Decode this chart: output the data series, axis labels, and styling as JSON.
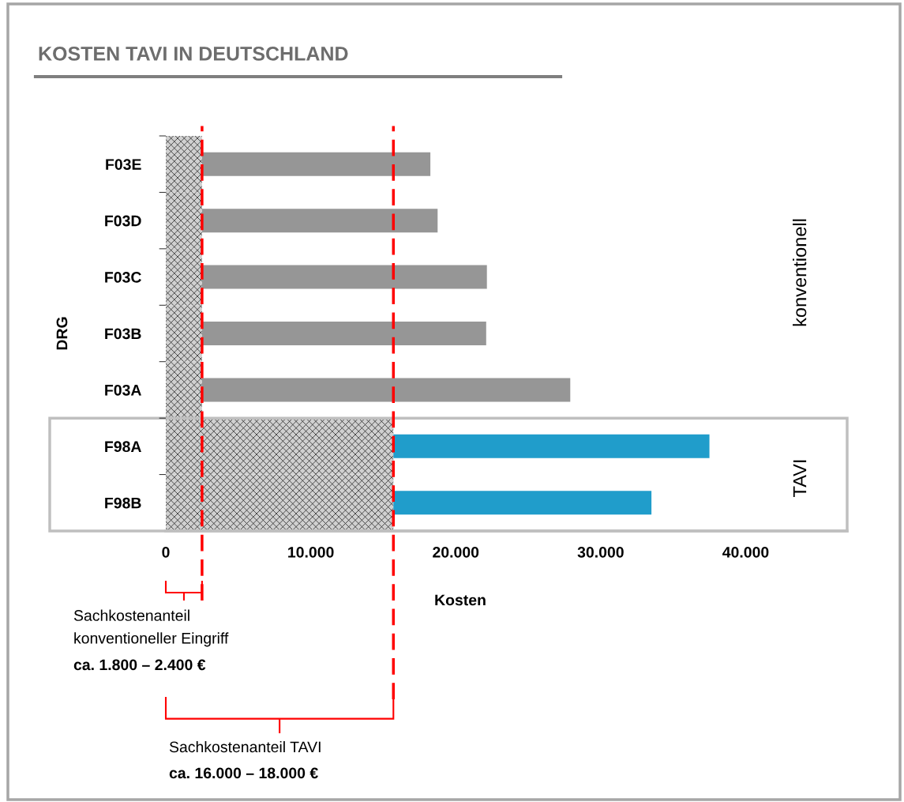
{
  "chart_data": {
    "type": "bar",
    "orientation": "horizontal",
    "stacked": true,
    "title": "KOSTEN TAVI IN DEUTSCHLAND",
    "xlabel": "Kosten",
    "ylabel": "DRG",
    "categories": [
      "F03E",
      "F03D",
      "F03C",
      "F03B",
      "F03A",
      "F98A",
      "F98B"
    ],
    "series": [
      {
        "color": "#d0d0d0",
        "values": [
          2500,
          2500,
          2500,
          2500,
          2500,
          15700,
          15700
        ]
      },
      {
        "colors": [
          "#969696",
          "#969696",
          "#969696",
          "#969696",
          "#969696",
          "#209dcb",
          "#209dcb"
        ],
        "values": [
          15750,
          16250,
          19650,
          19600,
          25400,
          21800,
          17800
        ]
      }
    ],
    "xlim": [
      0,
      47000
    ],
    "xticks": [
      0,
      {
        "value": 10000,
        "label": "10.000"
      },
      {
        "value": 20000,
        "label": "20.000"
      },
      {
        "value": 30000,
        "label": "30.000"
      },
      {
        "value": 40000,
        "label": "40.000"
      }
    ],
    "grid": false,
    "legend": false,
    "ref_lines": [
      {
        "axis": "x",
        "value": 2500,
        "color": "#ff0000",
        "line_style": "dashed"
      },
      {
        "axis": "x",
        "value": 15700,
        "color": "#ff0000",
        "line_style": "dashed"
      }
    ],
    "annotations": [
      "Sachkostenanteil\nkonventioneller Eingriff",
      "ca. 1.800 – 2.400 €",
      "Sachkostenanteil TAVI",
      "ca. 16.000 – 18.000 €",
      "konventionell",
      "TAVI"
    ]
  }
}
